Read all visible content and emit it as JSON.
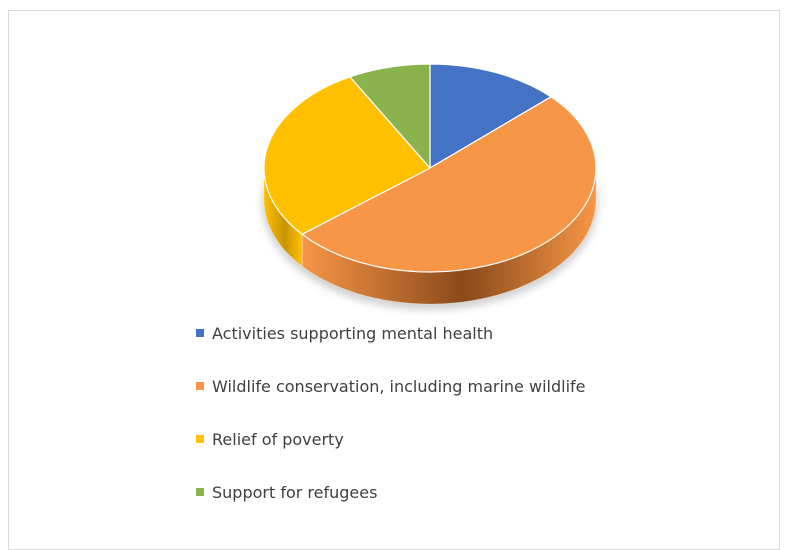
{
  "chart_data": {
    "type": "pie",
    "style": "3d",
    "title": "",
    "categories": [
      "Activities supporting mental health",
      "Wildlife conservation, including marine wildlife",
      "Relief of poverty",
      "Support for refugees"
    ],
    "values": [
      13,
      51,
      28,
      8
    ],
    "colors": [
      "#4472C4",
      "#F79646",
      "#FFC000",
      "#8AB34E"
    ],
    "side_colors": [
      "#2F5597",
      "#8A4A1A",
      "#C89500",
      "#5E7F33"
    ],
    "legend_position": "bottom"
  }
}
